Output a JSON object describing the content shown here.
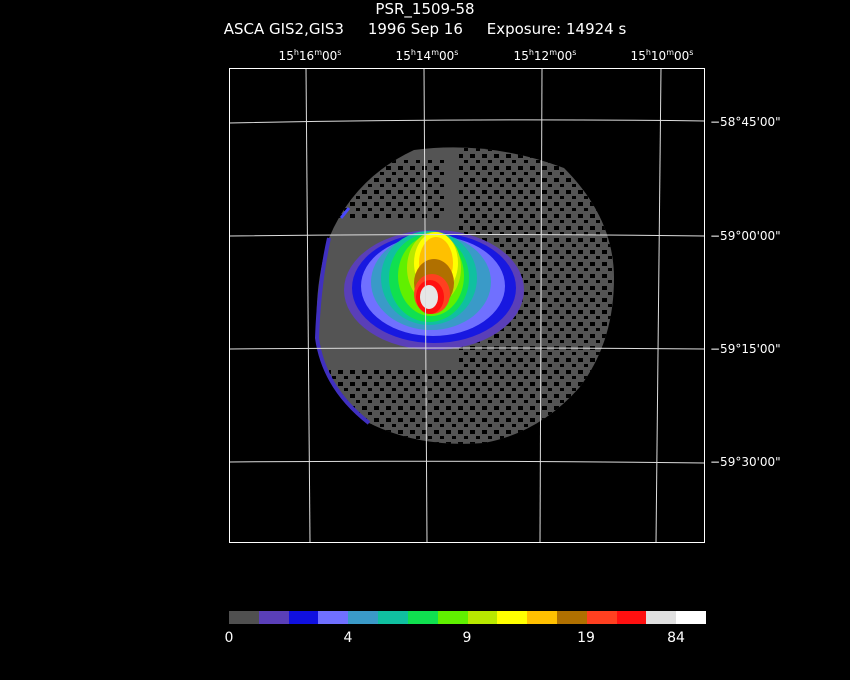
{
  "header": {
    "object": "PSR_1509-58",
    "instrument": "ASCA GIS2,GIS3",
    "date": "1996 Sep 16",
    "exposure": "Exposure: 14924 s"
  },
  "ra_labels": [
    {
      "h": "15",
      "m": "16",
      "s": "00"
    },
    {
      "h": "15",
      "m": "14",
      "s": "00"
    },
    {
      "h": "15",
      "m": "12",
      "s": "00"
    },
    {
      "h": "15",
      "m": "10",
      "s": "00"
    }
  ],
  "dec_labels": [
    "−58°45'00\"",
    "−59°00'00\"",
    "−59°15'00\"",
    "−59°30'00\""
  ],
  "colorbar": {
    "colors": [
      "#505050",
      "#5a3fb8",
      "#1010e0",
      "#7070ff",
      "#3a9ac8",
      "#10c0a0",
      "#10e050",
      "#60f000",
      "#b8e800",
      "#ffff00",
      "#ffc000",
      "#b07000",
      "#ff4020",
      "#ff1010",
      "#e0e0e0",
      "#ffffff"
    ],
    "tick_labels": [
      "0",
      "4",
      "9",
      "19",
      "84"
    ]
  }
}
